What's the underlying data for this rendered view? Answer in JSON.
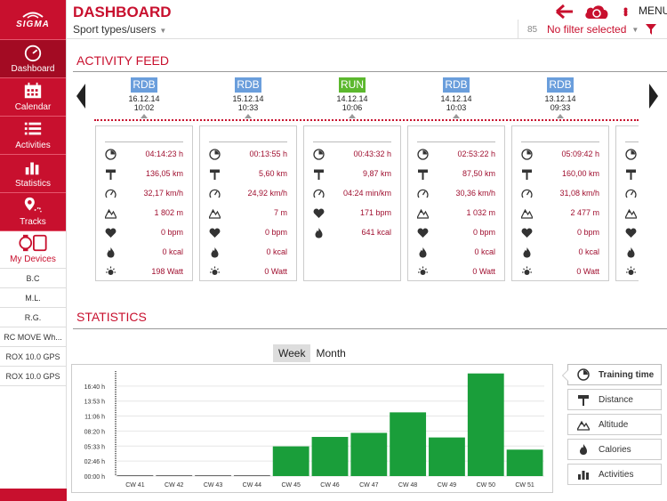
{
  "app": {
    "logo_text": "SIGMA"
  },
  "header": {
    "title": "DASHBOARD",
    "sport_users": "Sport types/users",
    "menu_label": "MENU",
    "filter_count": "85",
    "filter_text": "No filter selected"
  },
  "sidebar": {
    "items": [
      {
        "label": "Dashboard",
        "icon": "speedometer-icon",
        "active": true
      },
      {
        "label": "Calendar",
        "icon": "calendar-icon"
      },
      {
        "label": "Activities",
        "icon": "list-icon"
      },
      {
        "label": "Statistics",
        "icon": "bar-chart-icon"
      },
      {
        "label": "Tracks",
        "icon": "map-pin-icon"
      }
    ],
    "devices_label": "My Devices",
    "devices": [
      "B.C",
      "M.L.",
      "R.G.",
      "RC MOVE Wh...",
      "ROX 10.0 GPS",
      "ROX 10.0 GPS"
    ]
  },
  "feed": {
    "title": "ACTIVITY FEED",
    "activities": [
      {
        "type": "RDB",
        "date": "16.12.14",
        "time": "10:02",
        "metrics": [
          "04:14:23 h",
          "136,05 km",
          "32,17 km/h",
          "1 802 m",
          "0 bpm",
          "0 kcal",
          "198 Watt"
        ]
      },
      {
        "type": "RDB",
        "date": "15.12.14",
        "time": "10:33",
        "metrics": [
          "00:13:55 h",
          "5,60 km",
          "24,92 km/h",
          "7 m",
          "0 bpm",
          "0 kcal",
          "0 Watt"
        ]
      },
      {
        "type": "RUN",
        "date": "14.12.14",
        "time": "10:06",
        "metrics": [
          "00:43:32 h",
          "9,87 km",
          "04:24 min/km",
          "171 bpm",
          "641 kcal"
        ]
      },
      {
        "type": "RDB",
        "date": "14.12.14",
        "time": "10:03",
        "metrics": [
          "02:53:22 h",
          "87,50 km",
          "30,36 km/h",
          "1 032 m",
          "0 bpm",
          "0 kcal",
          "0 Watt"
        ]
      },
      {
        "type": "RDB",
        "date": "13.12.14",
        "time": "09:33",
        "metrics": [
          "05:09:42 h",
          "160,00 km",
          "31,08 km/h",
          "2 477 m",
          "0 bpm",
          "0 kcal",
          "0 Watt"
        ]
      }
    ]
  },
  "stats": {
    "title": "STATISTICS",
    "tabs": [
      "Week",
      "Month"
    ],
    "active_tab": "Week",
    "metrics": [
      "Training time",
      "Distance",
      "Altitude",
      "Calories",
      "Activities"
    ],
    "active_metric": "Training time"
  },
  "colors": {
    "brand": "#c8102e",
    "bar": "#1a9e3a",
    "rdb": "#6a9edc",
    "run": "#5cb82e"
  },
  "chart_data": {
    "type": "bar",
    "categories": [
      "CW 41",
      "CW 42",
      "CW 43",
      "CW 44",
      "CW 45",
      "CW 46",
      "CW 47",
      "CW 48",
      "CW 49",
      "CW 50",
      "CW 51"
    ],
    "values_hours": [
      0,
      0,
      0,
      0,
      5.5,
      7.25,
      8.0,
      11.8,
      7.15,
      19.0,
      4.9
    ],
    "y_ticks": [
      "00:00 h",
      "02:46 h",
      "05:33 h",
      "08:20 h",
      "11:06 h",
      "13:53 h",
      "16:40 h"
    ],
    "ylim_hours": [
      0,
      19.44
    ],
    "grid": true
  }
}
